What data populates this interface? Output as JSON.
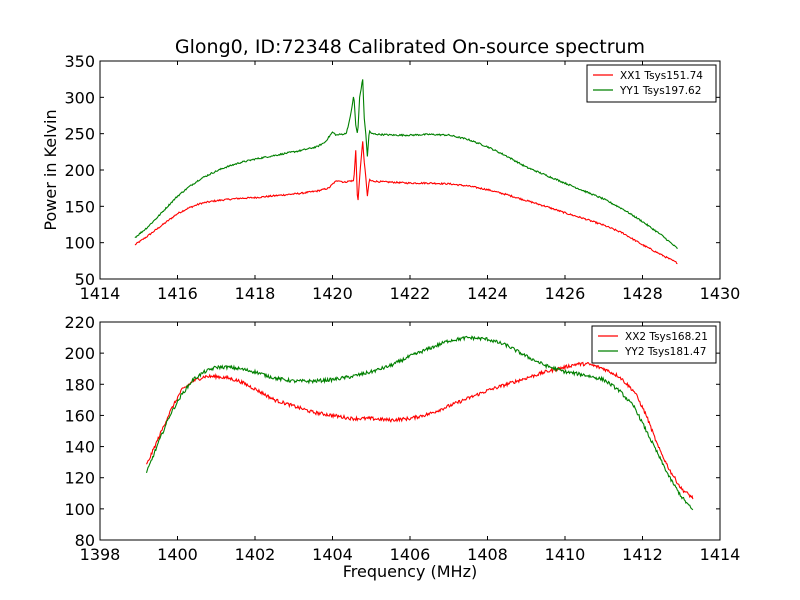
{
  "figure": {
    "title": "Glong0, ID:72348 Calibrated On-source spectrum"
  },
  "chart_data": [
    {
      "type": "line",
      "title": "Glong0, ID:72348 Calibrated On-source spectrum",
      "xlabel": "",
      "ylabel": "Power in Kelvin",
      "xlim": [
        1414,
        1430
      ],
      "ylim": [
        50,
        350
      ],
      "xticks": [
        1414,
        1416,
        1418,
        1420,
        1422,
        1424,
        1426,
        1428,
        1430
      ],
      "yticks": [
        50,
        100,
        150,
        200,
        250,
        300,
        350
      ],
      "legend_position": "top-right",
      "grid": false,
      "series": [
        {
          "name": "XX1 Tsys151.74",
          "color": "#ff0000",
          "x": [
            1414.9,
            1415.2,
            1415.5,
            1415.8,
            1416.0,
            1416.3,
            1416.6,
            1416.9,
            1417.2,
            1417.6,
            1418.0,
            1418.4,
            1418.8,
            1419.2,
            1419.6,
            1419.9,
            1420.05,
            1420.15,
            1420.3,
            1420.45,
            1420.55,
            1420.6,
            1420.65,
            1420.7,
            1420.78,
            1420.82,
            1420.86,
            1420.9,
            1420.95,
            1421.0,
            1421.2,
            1421.6,
            1422.0,
            1422.5,
            1423.0,
            1423.5,
            1424.0,
            1424.5,
            1425.0,
            1425.5,
            1426.0,
            1426.5,
            1427.0,
            1427.5,
            1428.0,
            1428.5,
            1428.9
          ],
          "values": [
            97,
            108,
            120,
            132,
            140,
            148,
            154,
            157,
            159,
            161,
            162,
            164,
            166,
            168,
            171,
            175,
            183,
            186,
            183,
            185,
            185,
            228,
            150,
            190,
            240,
            210,
            190,
            163,
            187,
            185,
            184,
            183,
            182,
            182,
            181,
            178,
            173,
            166,
            158,
            150,
            141,
            133,
            124,
            113,
            97,
            83,
            72
          ]
        },
        {
          "name": "YY1 Tsys197.62",
          "color": "#008000",
          "x": [
            1414.9,
            1415.2,
            1415.5,
            1415.8,
            1416.0,
            1416.3,
            1416.6,
            1416.9,
            1417.2,
            1417.6,
            1418.0,
            1418.4,
            1418.8,
            1419.2,
            1419.6,
            1419.8,
            1420.0,
            1420.1,
            1420.2,
            1420.35,
            1420.45,
            1420.55,
            1420.6,
            1420.65,
            1420.7,
            1420.78,
            1420.82,
            1420.86,
            1420.9,
            1420.95,
            1421.0,
            1421.2,
            1421.6,
            1422.0,
            1422.5,
            1423.0,
            1423.5,
            1424.0,
            1424.5,
            1425.0,
            1425.5,
            1426.0,
            1426.5,
            1427.0,
            1427.5,
            1428.0,
            1428.5,
            1428.9
          ],
          "values": [
            107,
            120,
            136,
            153,
            164,
            177,
            188,
            196,
            203,
            210,
            215,
            219,
            223,
            227,
            232,
            238,
            252,
            248,
            249,
            250,
            270,
            303,
            262,
            248,
            300,
            325,
            270,
            250,
            218,
            255,
            250,
            249,
            248,
            248,
            249,
            248,
            242,
            232,
            219,
            204,
            193,
            182,
            171,
            160,
            146,
            129,
            110,
            92
          ]
        }
      ]
    },
    {
      "type": "line",
      "title": "",
      "xlabel": "Frequency (MHz)",
      "ylabel": "",
      "xlim": [
        1398,
        1414
      ],
      "ylim": [
        80,
        220
      ],
      "xticks": [
        1398,
        1400,
        1402,
        1404,
        1406,
        1408,
        1410,
        1412,
        1414
      ],
      "yticks": [
        80,
        100,
        120,
        140,
        160,
        180,
        200,
        220
      ],
      "legend_position": "top-right",
      "grid": false,
      "series": [
        {
          "name": "XX2 Tsys168.21",
          "color": "#ff0000",
          "x": [
            1399.2,
            1399.5,
            1399.8,
            1400.1,
            1400.4,
            1400.7,
            1401.0,
            1401.3,
            1401.6,
            1402.0,
            1402.5,
            1403.0,
            1403.5,
            1404.0,
            1404.5,
            1405.0,
            1405.5,
            1406.0,
            1406.5,
            1407.0,
            1407.5,
            1408.0,
            1408.5,
            1409.0,
            1409.5,
            1410.0,
            1410.3,
            1410.6,
            1411.0,
            1411.4,
            1411.8,
            1412.1,
            1412.4,
            1412.7,
            1413.0,
            1413.3
          ],
          "values": [
            128,
            145,
            162,
            176,
            182,
            185,
            185,
            184,
            182,
            177,
            170,
            166,
            162,
            160,
            158,
            158,
            157,
            158,
            161,
            166,
            171,
            176,
            180,
            184,
            188,
            191,
            193,
            193,
            190,
            185,
            175,
            160,
            140,
            125,
            113,
            107
          ]
        },
        {
          "name": "YY2 Tsys181.47",
          "color": "#008000",
          "x": [
            1399.2,
            1399.5,
            1399.8,
            1400.1,
            1400.4,
            1400.7,
            1401.0,
            1401.3,
            1401.6,
            1402.0,
            1402.5,
            1403.0,
            1403.5,
            1404.0,
            1404.5,
            1405.0,
            1405.5,
            1406.0,
            1406.5,
            1407.0,
            1407.5,
            1408.0,
            1408.5,
            1409.0,
            1409.5,
            1410.0,
            1410.5,
            1411.0,
            1411.4,
            1411.8,
            1412.1,
            1412.4,
            1412.7,
            1413.0,
            1413.3
          ],
          "values": [
            123,
            142,
            160,
            173,
            183,
            188,
            191,
            191,
            190,
            188,
            184,
            182,
            182,
            183,
            185,
            188,
            192,
            198,
            203,
            208,
            210,
            209,
            205,
            198,
            192,
            188,
            186,
            183,
            176,
            165,
            150,
            135,
            120,
            108,
            99
          ]
        }
      ]
    }
  ]
}
